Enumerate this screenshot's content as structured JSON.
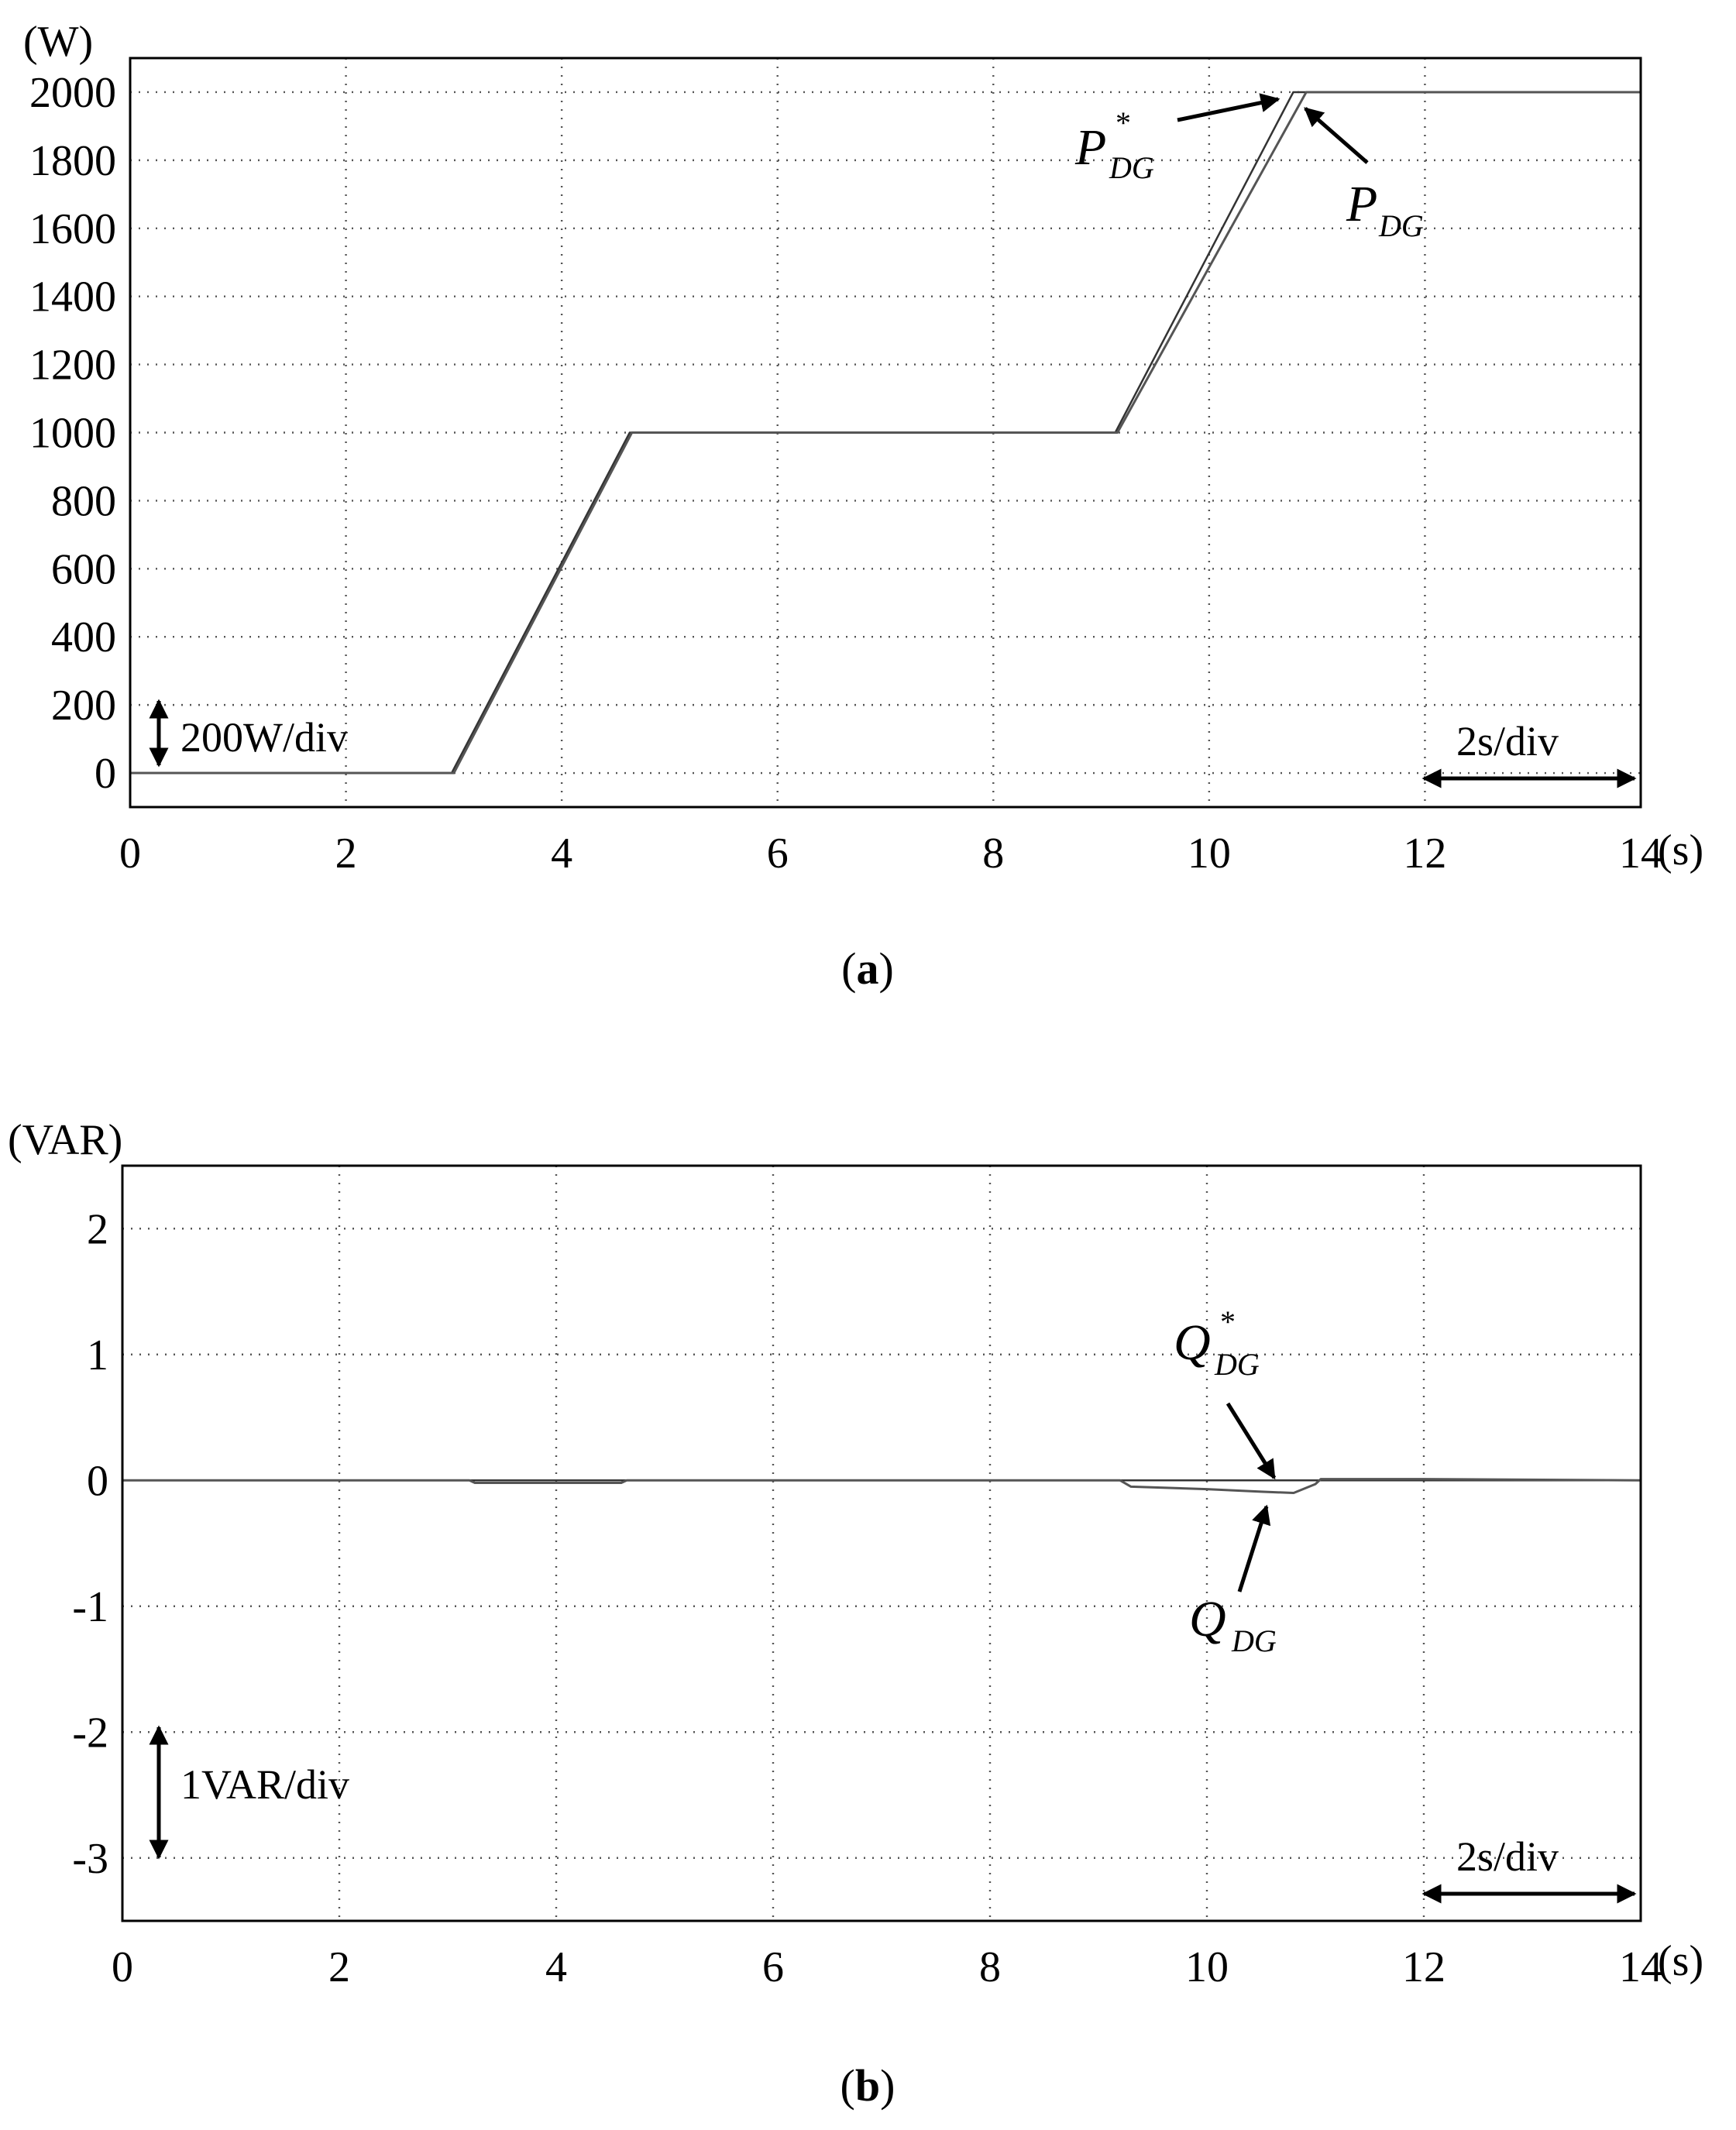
{
  "chart_data": [
    {
      "type": "line",
      "panel": "a",
      "caption": {
        "open": "(",
        "label": "a",
        "close": ")"
      },
      "y_unit": "(W)",
      "x_unit": "(s)",
      "xlim": [
        0,
        14
      ],
      "ylim": [
        -100,
        2100
      ],
      "x_ticks": [
        0,
        2,
        4,
        6,
        8,
        10,
        12,
        14
      ],
      "x_tick_labels": [
        "0",
        "2",
        "4",
        "6",
        "8",
        "10",
        "12",
        "14"
      ],
      "y_ticks": [
        0,
        200,
        400,
        600,
        800,
        1000,
        1200,
        1400,
        1600,
        1800,
        2000
      ],
      "y_tick_labels": [
        "0",
        "200",
        "400",
        "600",
        "800",
        "1000",
        "1200",
        "1400",
        "1600",
        "1800",
        "2000"
      ],
      "grid": true,
      "series": [
        {
          "name": "P*DG",
          "x": [
            0,
            2.98,
            4.63,
            9.13,
            10.78,
            14
          ],
          "y": [
            0,
            0,
            1000,
            1000,
            2000,
            2000
          ]
        },
        {
          "name": "PDG",
          "x": [
            0,
            3.0,
            4.65,
            9.15,
            10.9,
            14
          ],
          "y": [
            0,
            0,
            1000,
            1000,
            2000,
            2000
          ]
        }
      ],
      "annotations": {
        "y_scale": "200W/div",
        "x_scale": "2s/div",
        "ref_label": {
          "main": "P",
          "sup": "*",
          "sub": "DG"
        },
        "meas_label": {
          "main": "P",
          "sub": "DG"
        }
      }
    },
    {
      "type": "line",
      "panel": "b",
      "caption": {
        "open": "(",
        "label": "b",
        "close": ")"
      },
      "y_unit": "(VAR)",
      "x_unit": "(s)",
      "xlim": [
        0,
        14
      ],
      "ylim": [
        -3.5,
        2.5
      ],
      "x_ticks": [
        0,
        2,
        4,
        6,
        8,
        10,
        12,
        14
      ],
      "x_tick_labels": [
        "0",
        "2",
        "4",
        "6",
        "8",
        "10",
        "12",
        "14"
      ],
      "y_ticks": [
        -3,
        -2,
        -1,
        0,
        1,
        2
      ],
      "y_tick_labels": [
        "-3",
        "-2",
        "-1",
        "0",
        "1",
        "2"
      ],
      "grid": true,
      "series": [
        {
          "name": "Q*DG",
          "x": [
            0,
            14
          ],
          "y": [
            0,
            0
          ]
        },
        {
          "name": "QDG",
          "x": [
            0,
            3.2,
            3.25,
            4.6,
            4.65,
            9.2,
            9.3,
            10.0,
            10.5,
            10.8,
            11.0,
            11.05,
            12.0,
            14
          ],
          "y": [
            0,
            0,
            -0.02,
            -0.02,
            0,
            0,
            -0.05,
            -0.07,
            -0.09,
            -0.1,
            -0.03,
            0.01,
            0.01,
            0
          ]
        }
      ],
      "annotations": {
        "y_scale": "1VAR/div",
        "x_scale": "2s/div",
        "ref_label": {
          "main": "Q",
          "sup": "*",
          "sub": "DG"
        },
        "meas_label": {
          "main": "Q",
          "sub": "DG"
        }
      }
    }
  ]
}
